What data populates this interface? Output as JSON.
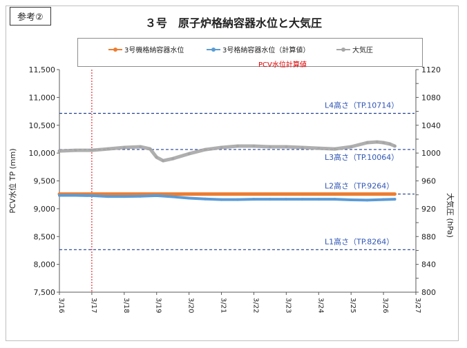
{
  "badge": "参考②",
  "chart_data": {
    "type": "line",
    "title": "３号　原子炉格納容器水位と大気圧",
    "ylabel": "PCV水位 TP (mm)",
    "y2label": "大気圧 (hPa)",
    "categories": [
      "3/16",
      "3/17",
      "3/18",
      "3/19",
      "3/20",
      "3/21",
      "3/22",
      "3/23",
      "3/24",
      "3/25",
      "3/26",
      "3/27"
    ],
    "xlim": [
      0,
      11
    ],
    "ylim": [
      7500,
      11500
    ],
    "y2lim": [
      800,
      1120
    ],
    "yticks": [
      "7,500",
      "8,000",
      "8,500",
      "9,000",
      "9,500",
      "10,000",
      "10,500",
      "11,000",
      "11,500"
    ],
    "y2ticks": [
      "800",
      "820",
      "840",
      "860",
      "880",
      "900",
      "920",
      "940",
      "960",
      "980",
      "1000",
      "1020",
      "1040",
      "1060",
      "1080",
      "1100",
      "1120"
    ],
    "grid": false,
    "legend_position": "top",
    "annotation_note": "PCV水位計算値",
    "marker_x": 1.0,
    "reference_lines": [
      {
        "label": "L4高さ（TP.10714）",
        "y": 10714
      },
      {
        "label": "L3高さ（TP.10064）",
        "y": 10064
      },
      {
        "label": "L2高さ（TP.9264）",
        "y": 9264
      },
      {
        "label": "L1高さ（TP.8264）",
        "y": 8264
      }
    ],
    "series": [
      {
        "name": "3号機格納容器水位",
        "axis": "left",
        "color": "#ed7d31",
        "x": [
          0,
          10.35
        ],
        "values": [
          9264,
          9264
        ]
      },
      {
        "name": "3号格納容器水位（計算値）",
        "axis": "left",
        "color": "#5b9bd5",
        "x": [
          0,
          0.5,
          1,
          1.5,
          2,
          2.5,
          3,
          3.5,
          4,
          4.5,
          5,
          5.5,
          6,
          6.5,
          7,
          7.5,
          8,
          8.5,
          9,
          9.5,
          10,
          10.35
        ],
        "values": [
          9240,
          9240,
          9235,
          9220,
          9220,
          9225,
          9235,
          9215,
          9190,
          9175,
          9165,
          9165,
          9170,
          9170,
          9170,
          9170,
          9170,
          9170,
          9160,
          9155,
          9165,
          9170
        ]
      },
      {
        "name": "大気圧",
        "axis": "right",
        "color": "#a6a6a6",
        "x": [
          0,
          0.5,
          1,
          1.5,
          2,
          2.5,
          2.8,
          3.0,
          3.2,
          3.5,
          4,
          4.5,
          5,
          5.5,
          6,
          6.5,
          7,
          7.5,
          8,
          8.5,
          9,
          9.5,
          9.8,
          10,
          10.2,
          10.35
        ],
        "values": [
          1003,
          1004,
          1004,
          1006,
          1008,
          1009,
          1006,
          994,
          989,
          992,
          999,
          1005,
          1008,
          1010,
          1010,
          1009,
          1009,
          1008,
          1007,
          1006,
          1009,
          1015,
          1016,
          1015,
          1013,
          1010
        ]
      }
    ]
  }
}
